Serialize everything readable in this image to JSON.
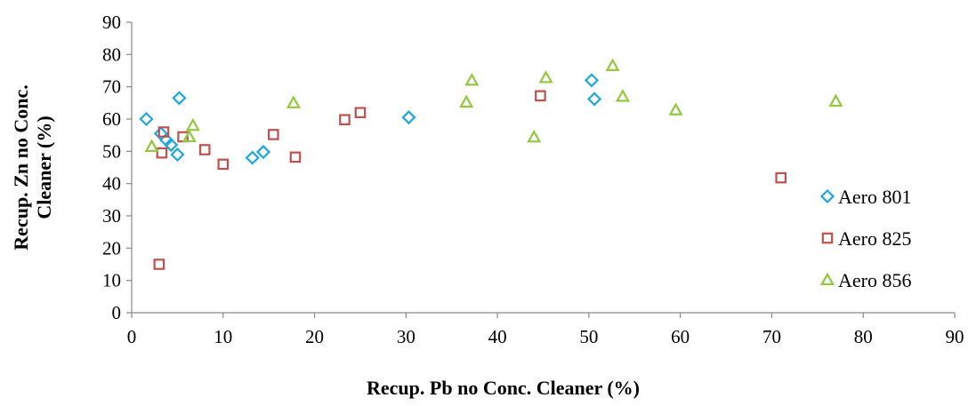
{
  "chart_data": {
    "type": "scatter",
    "title": "",
    "xlabel": "Recup. Pb no Conc. Cleaner (%)",
    "ylabel_lines": [
      "Recup. Zn  no Conc.",
      "Cleaner (%)"
    ],
    "xlim": [
      0,
      90
    ],
    "ylim": [
      0,
      90
    ],
    "xticks": [
      0,
      10,
      20,
      30,
      40,
      50,
      60,
      70,
      80,
      90
    ],
    "yticks": [
      0,
      10,
      20,
      30,
      40,
      50,
      60,
      70,
      80,
      90
    ],
    "grid": false,
    "legend_position": "right",
    "series": [
      {
        "name": "Aero 801",
        "marker": "diamond",
        "color": "#1aa7e0",
        "points": [
          [
            1.6,
            60
          ],
          [
            3.2,
            55.5
          ],
          [
            3.8,
            53.5
          ],
          [
            4.3,
            52
          ],
          [
            5.0,
            49
          ],
          [
            5.2,
            66.5
          ],
          [
            13.2,
            48
          ],
          [
            14.4,
            49.8
          ],
          [
            30.3,
            60.5
          ],
          [
            50.3,
            72
          ],
          [
            50.6,
            66.2
          ]
        ]
      },
      {
        "name": "Aero 825",
        "marker": "square",
        "color": "#c0504d",
        "points": [
          [
            3.0,
            15
          ],
          [
            3.3,
            49.5
          ],
          [
            3.5,
            56
          ],
          [
            5.6,
            54.5
          ],
          [
            8.0,
            50.5
          ],
          [
            10.0,
            46
          ],
          [
            15.5,
            55.2
          ],
          [
            17.9,
            48.2
          ],
          [
            23.3,
            59.8
          ],
          [
            25.0,
            62
          ],
          [
            44.7,
            67.2
          ],
          [
            71.0,
            41.8
          ]
        ]
      },
      {
        "name": "Aero 856",
        "marker": "triangle",
        "color": "#92c83e",
        "points": [
          [
            2.2,
            51.5
          ],
          [
            6.3,
            54.5
          ],
          [
            6.7,
            58
          ],
          [
            17.7,
            65
          ],
          [
            36.6,
            65.2
          ],
          [
            37.2,
            72
          ],
          [
            44.0,
            54.4
          ],
          [
            45.3,
            72.8
          ],
          [
            52.6,
            76.5
          ],
          [
            53.7,
            67
          ],
          [
            59.5,
            62.8
          ],
          [
            77.0,
            65.5
          ]
        ]
      }
    ]
  }
}
